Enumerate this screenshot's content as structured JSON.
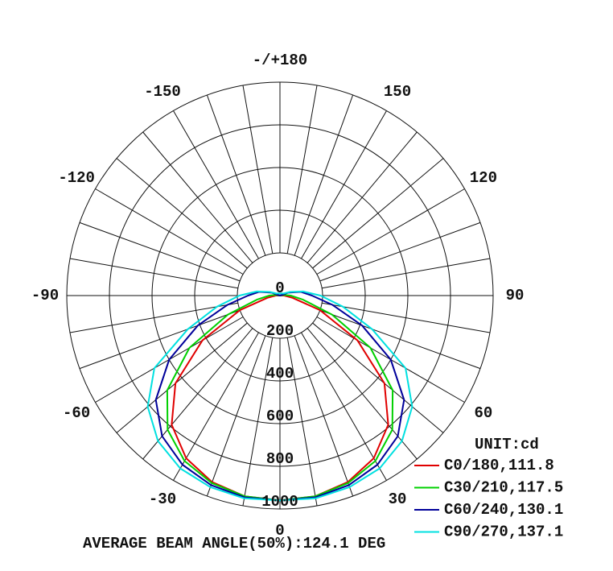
{
  "chart_data": {
    "type": "polar",
    "x": [
      -120,
      -110,
      -100,
      -90,
      -80,
      -70,
      -60,
      -50,
      -40,
      -30,
      -20,
      -10,
      0,
      10,
      20,
      30,
      40,
      50,
      60,
      70,
      80,
      90,
      100,
      110,
      120
    ],
    "series": [
      {
        "name": "C0/180,111.8",
        "color": "#e00000",
        "values": [
          0,
          0,
          0,
          20,
          60,
          200,
          420,
          640,
          790,
          880,
          930,
          955,
          960,
          955,
          930,
          880,
          790,
          640,
          420,
          200,
          60,
          20,
          0,
          0,
          0
        ]
      },
      {
        "name": "C30/210,117.5",
        "color": "#00d000",
        "values": [
          0,
          0,
          20,
          50,
          110,
          260,
          490,
          690,
          820,
          895,
          935,
          955,
          960,
          955,
          935,
          895,
          820,
          690,
          490,
          260,
          110,
          50,
          20,
          0,
          0
        ]
      },
      {
        "name": "C60/240,130.1",
        "color": "#00009a",
        "values": [
          0,
          40,
          100,
          150,
          250,
          410,
          600,
          760,
          860,
          915,
          945,
          960,
          960,
          960,
          945,
          915,
          860,
          760,
          600,
          410,
          250,
          150,
          100,
          40,
          0
        ]
      },
      {
        "name": "C90/270,137.1",
        "color": "#00e0e0",
        "values": [
          20,
          50,
          110,
          190,
          300,
          460,
          680,
          810,
          890,
          935,
          955,
          965,
          960,
          965,
          955,
          935,
          890,
          810,
          680,
          460,
          300,
          190,
          110,
          50,
          20
        ]
      }
    ],
    "rlim": [
      0,
      1000
    ],
    "rticks": [
      0,
      200,
      400,
      600,
      800,
      1000
    ],
    "xticks": [
      0,
      30,
      60,
      90,
      120,
      150,
      {
        "value": 180,
        "label": "-/+180"
      },
      -150,
      -120,
      -90,
      -60,
      -30
    ],
    "unit_label": "UNIT:cd",
    "footer": "AVERAGE BEAM ANGLE(50%):124.1 DEG"
  }
}
